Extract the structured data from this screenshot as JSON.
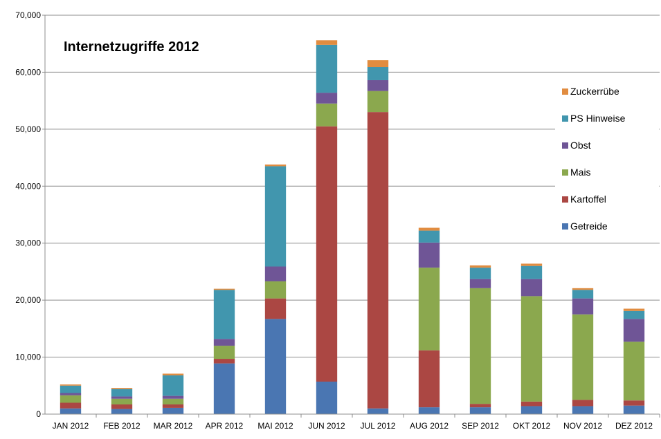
{
  "chart_data": {
    "type": "bar",
    "stacked": true,
    "title": "Internetzugriffe 2012",
    "xlabel": "",
    "ylabel": "",
    "ylim": [
      0,
      70000
    ],
    "yticks": [
      0,
      10000,
      20000,
      30000,
      40000,
      50000,
      60000,
      70000
    ],
    "ytick_labels": [
      "0",
      "10,000",
      "20,000",
      "30,000",
      "40,000",
      "50,000",
      "60,000",
      "70,000"
    ],
    "grid": true,
    "legend_position": "right",
    "categories": [
      "JAN 2012",
      "FEB 2012",
      "MAR 2012",
      "APR 2012",
      "MAI 2012",
      "JUN 2012",
      "JUL 2012",
      "AUG 2012",
      "SEP 2012",
      "OKT 2012",
      "NOV 2012",
      "DEZ 2012"
    ],
    "series": [
      {
        "name": "Getreide",
        "color": "#4a76b2",
        "values": [
          1000,
          900,
          1100,
          8900,
          16700,
          5700,
          1000,
          1200,
          1200,
          1400,
          1400,
          1500
        ]
      },
      {
        "name": "Kartoffel",
        "color": "#ab4743",
        "values": [
          1000,
          800,
          600,
          800,
          3600,
          44800,
          52000,
          10000,
          600,
          800,
          1100,
          900
        ]
      },
      {
        "name": "Mais",
        "color": "#8ba84e",
        "values": [
          1300,
          1000,
          1000,
          2300,
          3000,
          4000,
          3700,
          14500,
          20300,
          18500,
          15000,
          10300
        ]
      },
      {
        "name": "Obst",
        "color": "#6f5596",
        "values": [
          400,
          400,
          500,
          1200,
          2600,
          1900,
          1900,
          4400,
          1600,
          3000,
          2800,
          4000
        ]
      },
      {
        "name": "PS Hinweise",
        "color": "#4196ae",
        "values": [
          1300,
          1300,
          3600,
          8600,
          17600,
          8400,
          2300,
          2100,
          2000,
          2300,
          1500,
          1400
        ]
      },
      {
        "name": "Zuckerrübe",
        "color": "#e18c40",
        "values": [
          200,
          200,
          300,
          200,
          300,
          800,
          1200,
          500,
          400,
          400,
          300,
          400
        ]
      }
    ]
  }
}
